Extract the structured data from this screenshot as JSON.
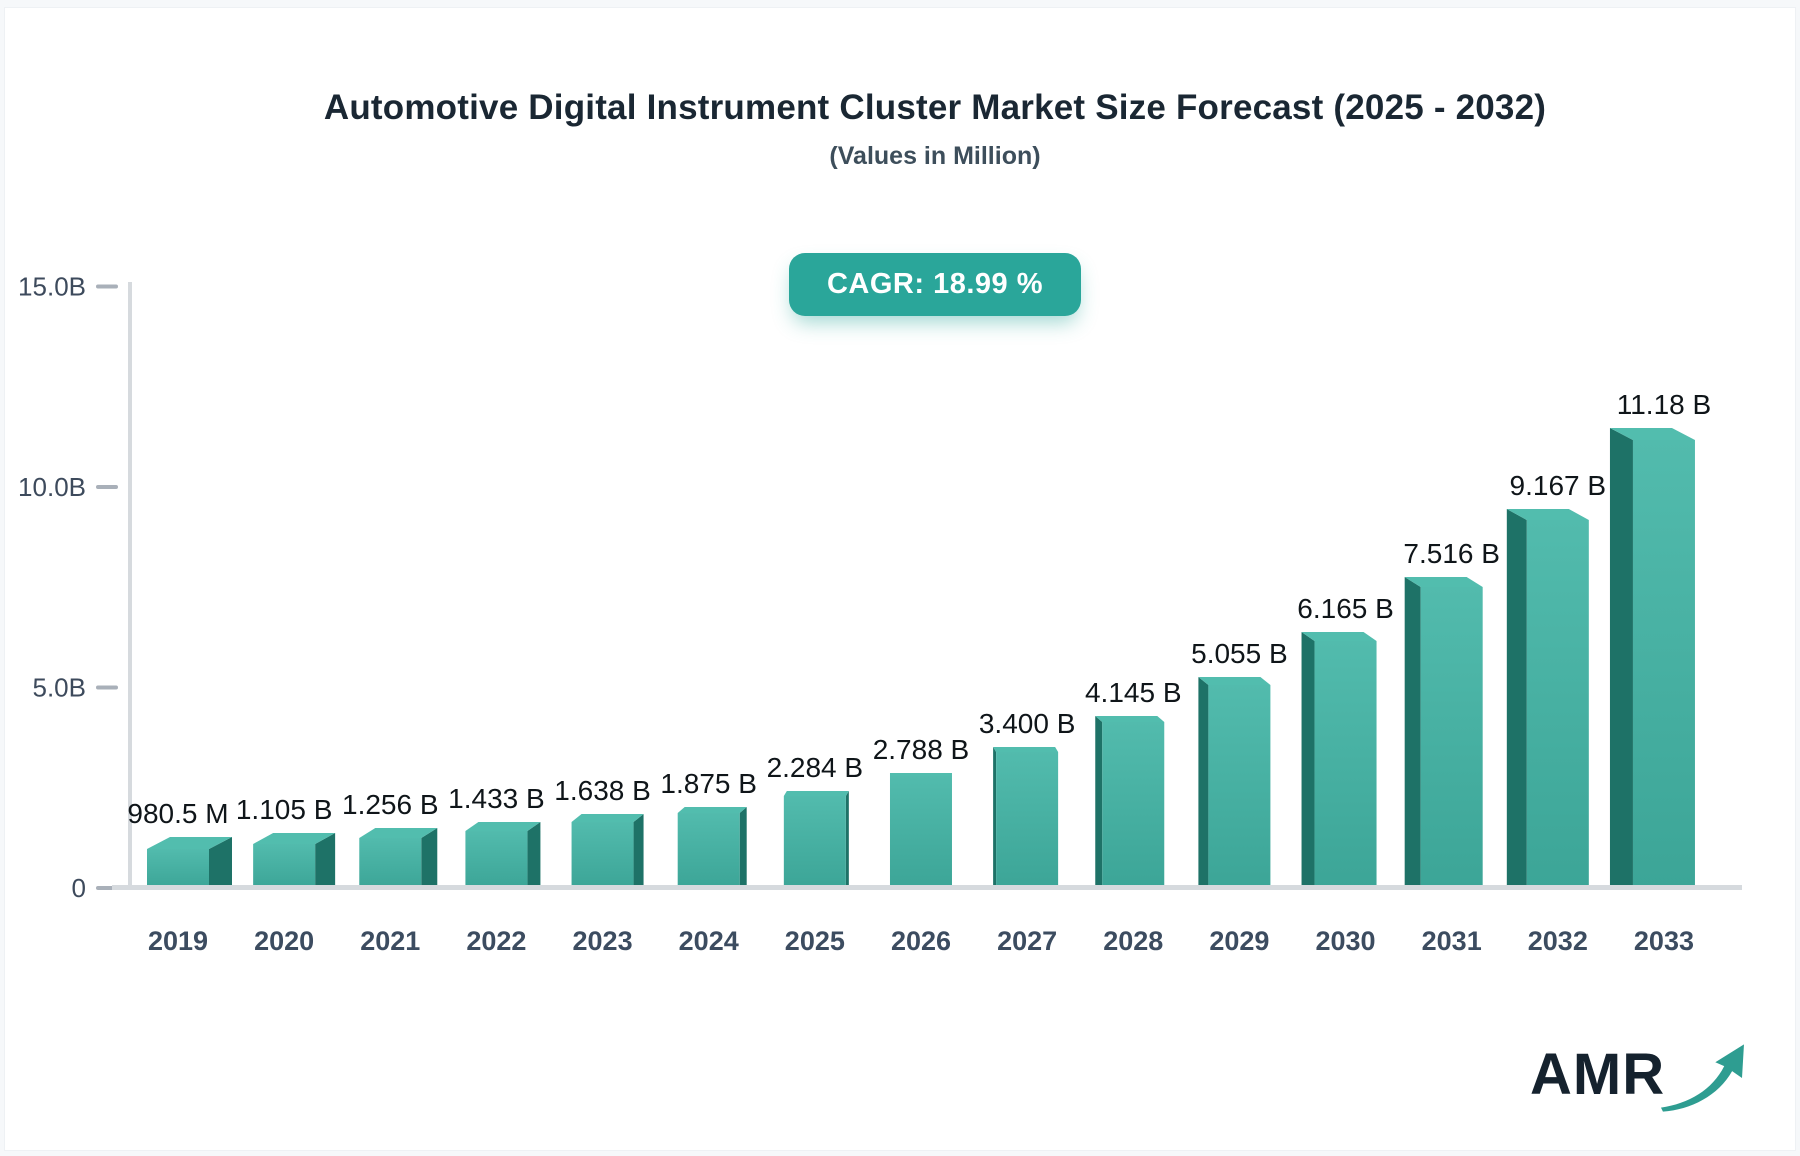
{
  "page": {
    "title": "Automotive Digital Instrument Cluster Market Size Forecast (2025 - 2032)",
    "subtitle": "(Values in Million)",
    "cagr_badge": "CAGR: 18.99 %"
  },
  "chart_data": {
    "type": "bar",
    "title": "Automotive Digital Instrument Cluster Market Size Forecast (2025 - 2032)",
    "subtitle": "(Values in Million)",
    "cagr_percent": 18.99,
    "categories": [
      "2019",
      "2020",
      "2021",
      "2022",
      "2023",
      "2024",
      "2025",
      "2026",
      "2027",
      "2028",
      "2029",
      "2030",
      "2031",
      "2032",
      "2033"
    ],
    "values_billions": [
      0.9805,
      1.105,
      1.256,
      1.433,
      1.638,
      1.875,
      2.284,
      2.788,
      3.4,
      4.145,
      5.055,
      6.165,
      7.516,
      9.167,
      11.18
    ],
    "value_labels": [
      "980.5 M",
      "1.105 B",
      "1.256 B",
      "1.433 B",
      "1.638 B",
      "1.875 B",
      "2.284 B",
      "2.788 B",
      "3.400 B",
      "4.145 B",
      "5.055 B",
      "6.165 B",
      "7.516 B",
      "9.167 B",
      "11.18 B"
    ],
    "ylim": [
      0,
      15
    ],
    "yticks": [
      {
        "label": "15.0B",
        "value": 15
      },
      {
        "label": "10.0B",
        "value": 10
      },
      {
        "label": "5.0B",
        "value": 5
      },
      {
        "label": "0",
        "value": 0
      }
    ],
    "grid": "off",
    "legend": "none",
    "style_3d_perspective": "center-vanishing-point",
    "colors": {
      "bar_front_light": "#52bbad",
      "bar_front_dark": "#3ca597",
      "bar_side": "#1e7267",
      "bar_top": "#52bdae",
      "axis_line": "#d6dade",
      "tick_dash": "#a9b0b9",
      "axis_label": "#3d4a5c",
      "year_label": "#3c4c60",
      "value_label": "#0f1519",
      "badge_bg": "#2aa69a",
      "badge_text": "#ffffff"
    }
  },
  "logo": {
    "text": "AMR",
    "text_color": "#15222e",
    "arrow_color": "#2e9d91"
  }
}
